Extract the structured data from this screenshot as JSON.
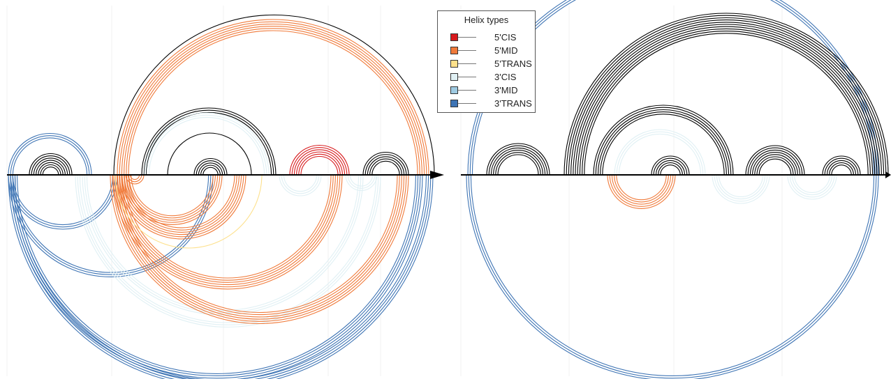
{
  "legend": {
    "title": "Helix types",
    "items": [
      {
        "key": "cis5",
        "label": "5'CIS",
        "color": "#d7191c"
      },
      {
        "key": "mid5",
        "label": "5'MID",
        "color": "#f07a3a"
      },
      {
        "key": "trans5",
        "label": "5'TRANS",
        "color": "#fde08b"
      },
      {
        "key": "cis3",
        "label": "3'CIS",
        "color": "#e0f0f4"
      },
      {
        "key": "mid3",
        "label": "3'MID",
        "color": "#9ecae1"
      },
      {
        "key": "trans3",
        "label": "3'TRANS",
        "color": "#3e74b4"
      }
    ],
    "default_color": "#000000"
  },
  "diagrams": [
    {
      "name": "left-arc-diagram",
      "helices": [
        {
          "type": "trans3",
          "side": "top",
          "a": 12,
          "b": 131,
          "n": 3
        },
        {
          "type": "none",
          "side": "top",
          "a": 42,
          "b": 103,
          "n": 7
        },
        {
          "type": "none",
          "side": "top",
          "a": 163,
          "b": 622,
          "n": 1
        },
        {
          "type": "mid5",
          "side": "top",
          "a": 168,
          "b": 614,
          "n": 6
        },
        {
          "type": "none",
          "side": "top",
          "a": 203,
          "b": 395,
          "n": 3
        },
        {
          "type": "cis3",
          "side": "top",
          "a": 207,
          "b": 385,
          "n": 3
        },
        {
          "type": "none",
          "side": "top",
          "a": 240,
          "b": 360,
          "n": 1
        },
        {
          "type": "none",
          "side": "top",
          "a": 278,
          "b": 325,
          "n": 5
        },
        {
          "type": "cis5",
          "side": "top",
          "a": 415,
          "b": 500,
          "n": 6
        },
        {
          "type": "none",
          "side": "top",
          "a": 520,
          "b": 585,
          "n": 5
        },
        {
          "type": "trans3",
          "side": "bottom",
          "a": 12,
          "b": 168,
          "n": 3
        },
        {
          "type": "trans3",
          "side": "bottom",
          "a": 12,
          "b": 305,
          "n": 3
        },
        {
          "type": "trans3",
          "side": "bottom",
          "a": 12,
          "b": 620,
          "n": 4
        },
        {
          "type": "trans3",
          "side": "bottom",
          "a": 15,
          "b": 605,
          "n": 4
        },
        {
          "type": "cis3",
          "side": "bottom",
          "a": 108,
          "b": 545,
          "n": 3
        },
        {
          "type": "cis3",
          "side": "bottom",
          "a": 118,
          "b": 520,
          "n": 3
        },
        {
          "type": "mid5",
          "side": "bottom",
          "a": 158,
          "b": 585,
          "n": 6
        },
        {
          "type": "mid5",
          "side": "bottom",
          "a": 162,
          "b": 490,
          "n": 6
        },
        {
          "type": "trans5",
          "side": "bottom",
          "a": 165,
          "b": 375,
          "n": 1
        },
        {
          "type": "mid5",
          "side": "bottom",
          "a": 168,
          "b": 352,
          "n": 6
        },
        {
          "type": "mid5",
          "side": "bottom",
          "a": 175,
          "b": 318,
          "n": 5
        },
        {
          "type": "mid5",
          "side": "bottom",
          "a": 180,
          "b": 206,
          "n": 3
        },
        {
          "type": "cis3",
          "side": "bottom",
          "a": 400,
          "b": 460,
          "n": 3
        },
        {
          "type": "cis3",
          "side": "bottom",
          "a": 495,
          "b": 540,
          "n": 3
        }
      ]
    },
    {
      "name": "right-arc-diagram",
      "helices": [
        {
          "type": "trans3",
          "side": "top",
          "a": 670,
          "b": 1258,
          "n": 3
        },
        {
          "type": "none",
          "side": "top",
          "a": 697,
          "b": 787,
          "n": 6
        },
        {
          "type": "none",
          "side": "top",
          "a": 808,
          "b": 1272,
          "n": 10
        },
        {
          "type": "none",
          "side": "top",
          "a": 850,
          "b": 1050,
          "n": 5
        },
        {
          "type": "cis3",
          "side": "top",
          "a": 880,
          "b": 1010,
          "n": 3
        },
        {
          "type": "none",
          "side": "top",
          "a": 933,
          "b": 987,
          "n": 5
        },
        {
          "type": "none",
          "side": "top",
          "a": 1068,
          "b": 1152,
          "n": 7
        },
        {
          "type": "none",
          "side": "top",
          "a": 1178,
          "b": 1232,
          "n": 5
        },
        {
          "type": "trans3",
          "side": "bottom",
          "a": 668,
          "b": 1258,
          "n": 3
        },
        {
          "type": "mid5",
          "side": "bottom",
          "a": 870,
          "b": 967,
          "n": 5
        },
        {
          "type": "cis3",
          "side": "bottom",
          "a": 1020,
          "b": 1102,
          "n": 4
        },
        {
          "type": "cis3",
          "side": "bottom",
          "a": 1128,
          "b": 1198,
          "n": 4
        }
      ]
    }
  ]
}
